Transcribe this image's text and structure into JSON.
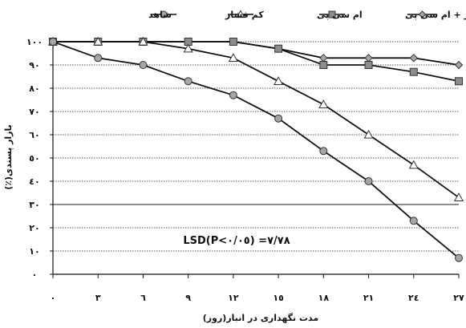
{
  "chart_data": {
    "type": "line",
    "title": "",
    "xlabel": "مدت نگهداری در انبار(روز)",
    "ylabel": "بازار پسندی(٪)",
    "x": [
      0,
      3,
      6,
      9,
      12,
      15,
      18,
      21,
      24,
      27
    ],
    "x_tick_labels": [
      "٠",
      "٣",
      "٦",
      "٩",
      "١٢",
      "١٥",
      "١٨",
      "٢١",
      "٢٤",
      "٢٧"
    ],
    "y_ticks": [
      0,
      10,
      20,
      30,
      40,
      50,
      60,
      70,
      80,
      90,
      100
    ],
    "y_tick_labels": [
      "٠",
      "١٠",
      "٢٠",
      "٣٠",
      "٤٠",
      "٥٠",
      "٦٠",
      "٧٠",
      "٨٠",
      "٩٠",
      "١٠٠"
    ],
    "ylim": [
      0,
      100
    ],
    "xlim": [
      0,
      27
    ],
    "grid": "horizontal",
    "legend_position": "top",
    "annotation": "LSD(P<٠/٠٥) =٧/٧٨",
    "series": [
      {
        "name": "کم فشار + ام سی پی",
        "marker": "diamond",
        "color": "#a6a6a6",
        "values": [
          100,
          100,
          100,
          100,
          100,
          97,
          93,
          93,
          93,
          90
        ]
      },
      {
        "name": "ام سی پی",
        "marker": "square",
        "color": "#8c8c8c",
        "values": [
          100,
          100,
          100,
          100,
          100,
          97,
          90,
          90,
          87,
          83
        ]
      },
      {
        "name": "کم فشار",
        "marker": "triangle",
        "color": "#ffffff",
        "values": [
          100,
          100,
          100,
          97,
          93,
          83,
          73,
          60,
          47,
          33
        ]
      },
      {
        "name": "شاهد",
        "marker": "circle",
        "color": "#a6a6a6",
        "values": [
          100,
          93,
          90,
          83,
          77,
          67,
          53,
          40,
          23,
          7
        ]
      }
    ]
  }
}
